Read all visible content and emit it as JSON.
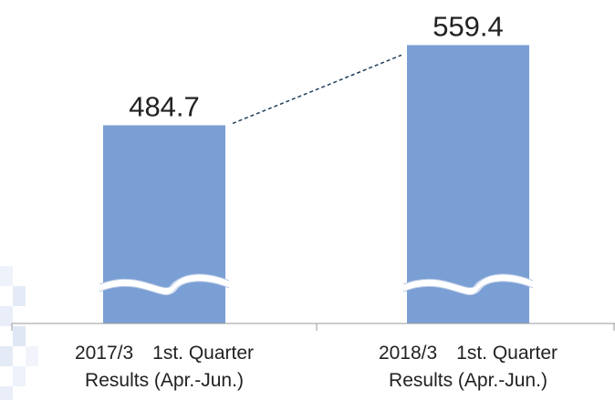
{
  "chart_data": {
    "type": "bar",
    "categories": [
      [
        "2017/3　1st. Quarter",
        "Results (Apr.-Jun.)"
      ],
      [
        "2018/3　1st. Quarter",
        "Results (Apr.-Jun.)"
      ]
    ],
    "values": [
      484.7,
      559.4
    ],
    "color": "#7a9fd4",
    "ylim": [
      300,
      570
    ]
  }
}
